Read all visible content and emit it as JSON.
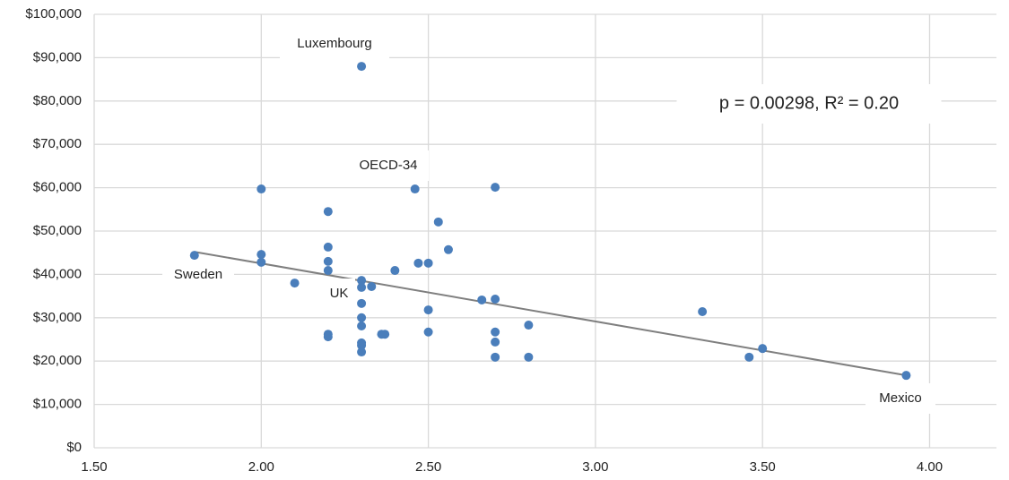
{
  "chart_data": {
    "type": "scatter",
    "color": "#4a7ebb",
    "grid": true,
    "x": [
      2.3,
      2.0,
      2.2,
      2.46,
      2.7,
      2.53,
      2.56,
      2.2,
      1.8,
      2.0,
      2.0,
      2.2,
      2.2,
      2.4,
      2.47,
      2.5,
      2.1,
      2.3,
      2.3,
      2.33,
      2.3,
      2.66,
      2.7,
      2.5,
      3.32,
      2.3,
      2.3,
      2.8,
      2.2,
      2.2,
      2.36,
      2.37,
      2.5,
      2.7,
      2.3,
      2.3,
      2.7,
      2.3,
      3.5,
      2.7,
      2.8,
      3.46,
      3.93
    ],
    "values": [
      88000,
      59700,
      54500,
      59700,
      60100,
      52100,
      45700,
      46300,
      44400,
      44600,
      42800,
      43000,
      40900,
      40900,
      42600,
      42600,
      38000,
      38600,
      37000,
      37200,
      33300,
      34100,
      34300,
      31800,
      31400,
      30000,
      28100,
      28300,
      26200,
      25600,
      26200,
      26200,
      26700,
      26700,
      24200,
      23600,
      24400,
      22100,
      22900,
      20900,
      20900,
      20900,
      16700
    ],
    "trendline": {
      "color": "#7f7f7f",
      "x": [
        1.8,
        3.93
      ],
      "y": [
        45200,
        16700
      ]
    },
    "annotations": [
      "Luxembourg",
      "OECD-34",
      "Sweden",
      "UK",
      "Mexico",
      "p = 0.00298, R² = 0.20"
    ],
    "xlim": [
      1.5,
      4.2
    ],
    "ylim": [
      0,
      100000
    ],
    "xticks": [
      {
        "value": 1.5,
        "label": "1.50"
      },
      {
        "value": 2,
        "label": "2.00"
      },
      {
        "value": 2.5,
        "label": "2.50"
      },
      {
        "value": 3,
        "label": "3.00"
      },
      {
        "value": 3.5,
        "label": "3.50"
      },
      {
        "value": 4,
        "label": "4.00"
      }
    ],
    "yticks": [
      {
        "value": 0,
        "label": "$0"
      },
      {
        "value": 10000,
        "label": "$10,000"
      },
      {
        "value": 20000,
        "label": "$20,000"
      },
      {
        "value": 30000,
        "label": "$30,000"
      },
      {
        "value": 40000,
        "label": "$40,000"
      },
      {
        "value": 50000,
        "label": "$50,000"
      },
      {
        "value": 60000,
        "label": "$60,000"
      },
      {
        "value": 70000,
        "label": "$70,000"
      },
      {
        "value": 80000,
        "label": "$80,000"
      },
      {
        "value": 90000,
        "label": "$90,000"
      },
      {
        "value": 100000,
        "label": "$100,000"
      }
    ]
  }
}
